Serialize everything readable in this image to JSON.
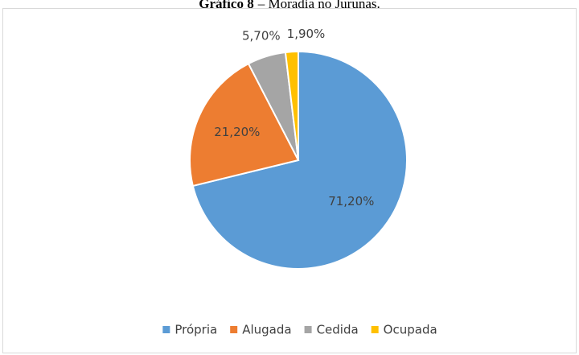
{
  "chart_data": {
    "type": "pie",
    "title_prefix": "Gráfico 8",
    "title": "– Moradia no Jurunas.",
    "categories": [
      "Própria",
      "Alugada",
      "Cedida",
      "Ocupada"
    ],
    "values": [
      71.2,
      21.2,
      5.7,
      1.9
    ],
    "value_labels": [
      "71,20%",
      "21,20%",
      "5,70%",
      "1,90%"
    ],
    "colors": [
      "#5b9bd5",
      "#ed7d31",
      "#a5a5a5",
      "#ffc000"
    ],
    "legend": "bottom"
  }
}
